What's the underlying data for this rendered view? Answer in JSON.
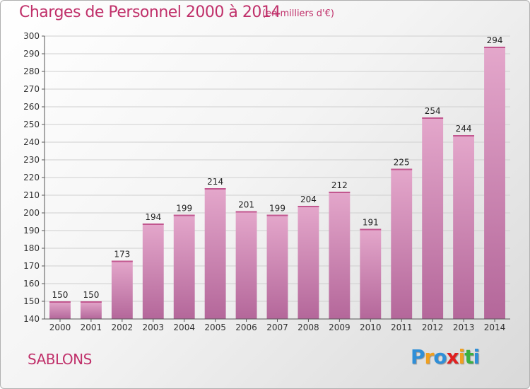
{
  "chart_data": {
    "type": "bar",
    "title": "Charges de Personnel 2000 à 2014",
    "subtitle": "(en milliers d'€)",
    "categories": [
      "2000",
      "2001",
      "2002",
      "2003",
      "2004",
      "2005",
      "2006",
      "2007",
      "2008",
      "2009",
      "2010",
      "2011",
      "2012",
      "2013",
      "2014"
    ],
    "values": [
      150,
      150,
      173,
      194,
      199,
      214,
      201,
      199,
      204,
      212,
      191,
      225,
      254,
      244,
      294
    ],
    "ylim": [
      140,
      300
    ],
    "yticks": [
      140,
      150,
      160,
      170,
      180,
      190,
      200,
      210,
      220,
      230,
      240,
      250,
      260,
      270,
      280,
      290,
      300
    ],
    "grid": true,
    "bar_color": "#d987b4"
  },
  "place_label": "SABLONS",
  "logo": {
    "letters": [
      "P",
      "r",
      "o",
      "x",
      "i",
      "t",
      "i"
    ],
    "colors": [
      "#2f8fd8",
      "#f0a020",
      "#2f8fd8",
      "#e02020",
      "#f0a020",
      "#3ab040",
      "#2f8fd8"
    ]
  }
}
